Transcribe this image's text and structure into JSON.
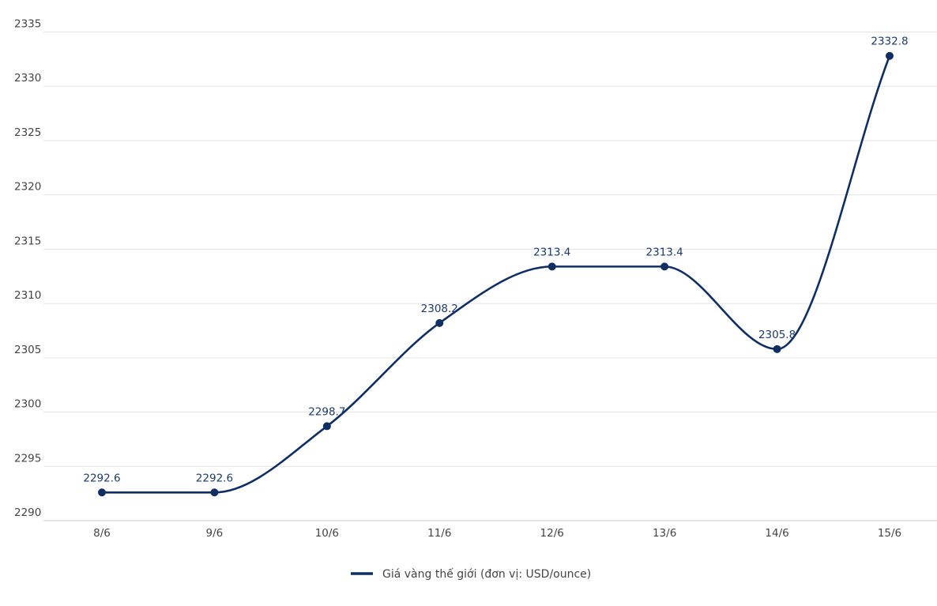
{
  "chart_data": {
    "type": "line",
    "categories": [
      "8/6",
      "9/6",
      "10/6",
      "11/6",
      "12/6",
      "13/6",
      "14/6",
      "15/6"
    ],
    "series": [
      {
        "name": "Giá vàng thế giới (đơn vị: USD/ounce)",
        "values": [
          2292.6,
          2292.6,
          2298.7,
          2308.2,
          2313.4,
          2313.4,
          2305.8,
          2332.8
        ],
        "labels": [
          "2292.6",
          "2292.6",
          "2298.7",
          "2308.2",
          "2313.4",
          "2313.4",
          "2305.8",
          "2332.8"
        ]
      }
    ],
    "yticks": [
      "2290",
      "2295",
      "2300",
      "2305",
      "2310",
      "2315",
      "2320",
      "2325",
      "2330",
      "2335"
    ],
    "ylim": [
      2290,
      2335
    ],
    "grid": true,
    "legend_position": "bottom",
    "line_style": "smooth",
    "colors": {
      "series": "#0f2f63",
      "grid": "#e3e3e3",
      "axis": "#cccccc"
    }
  }
}
